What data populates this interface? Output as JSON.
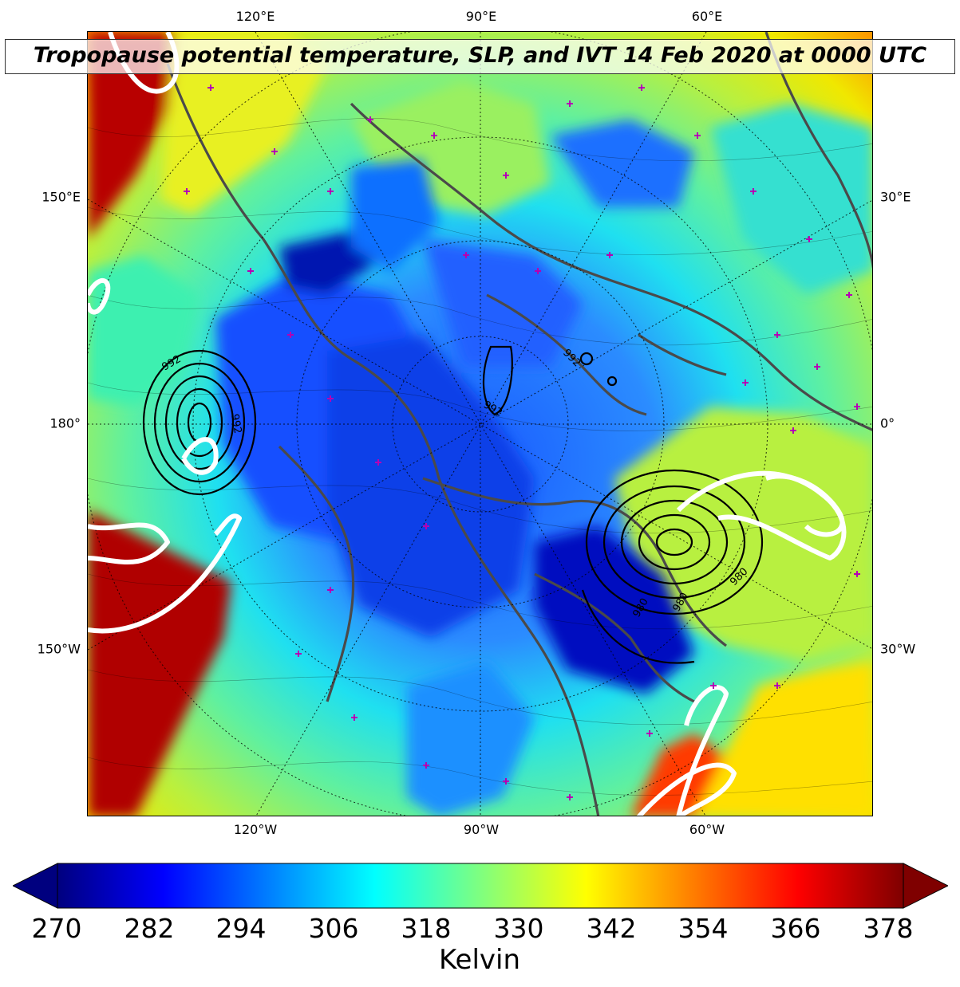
{
  "title": "Tropopause potential temperature, SLP, and IVT 14 Feb 2020 at 0000 UTC",
  "map": {
    "projection": "north-polar-stereographic",
    "central_longitude_on_screen": "90°W bottom / 90°E top",
    "fill_field": "tropopause potential temperature",
    "contours": [
      "SLP (black)",
      "IVT (white)"
    ],
    "coastline_color": "#4a4a4a",
    "station_marker_color": "#b400b4",
    "slp_contour_labels": [
      "992",
      "992",
      "992",
      "980",
      "980",
      "980",
      "992"
    ]
  },
  "coord_labels": {
    "top": [
      "120°E",
      "90°E",
      "60°E"
    ],
    "bottom": [
      "120°W",
      "90°W",
      "60°W"
    ],
    "left": [
      "150°E",
      "180°",
      "150°W"
    ],
    "right": [
      "30°E",
      "0°",
      "30°W"
    ]
  },
  "colorbar": {
    "ticks": [
      "270",
      "282",
      "294",
      "306",
      "318",
      "330",
      "342",
      "354",
      "366",
      "378"
    ],
    "label": "Kelvin",
    "min": 270,
    "max": 381,
    "extend": "both",
    "colormap": "jet",
    "stops": [
      "#00007f",
      "#0000ff",
      "#007fff",
      "#00ffff",
      "#7fff7f",
      "#ffff00",
      "#ff7f00",
      "#ff0000",
      "#7f0000"
    ]
  }
}
